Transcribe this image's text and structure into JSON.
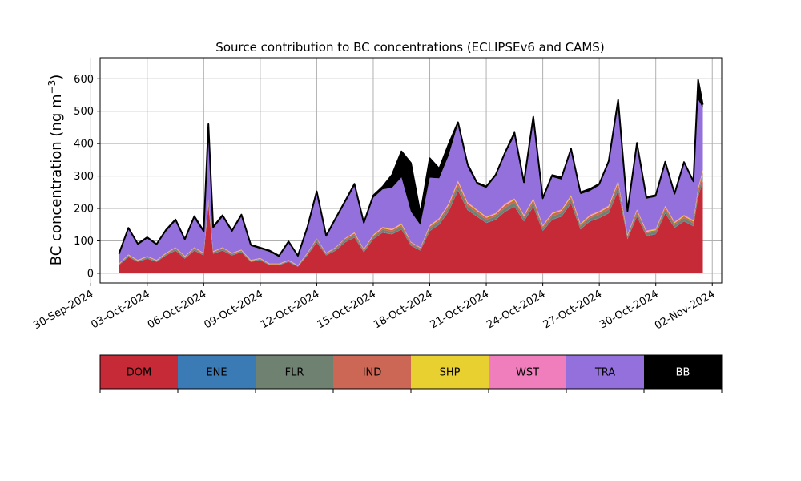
{
  "chart_data": {
    "type": "area",
    "stacked": true,
    "title": "Source contribution to BC concentrations (ECLIPSEv6 and CAMS)",
    "xlabel": "",
    "ylabel": "BC concentration (ng m",
    "ylabel_sup": "−3",
    "ylabel_end": ")",
    "xlim": [
      "2024-09-30T12:00",
      "2024-11-02T12:00"
    ],
    "ylim": [
      -30,
      665
    ],
    "grid": true,
    "yticks": [
      0,
      100,
      200,
      300,
      400,
      500,
      600
    ],
    "xticks": [
      {
        "date": "2024-09-30",
        "label": "30-Sep-2024"
      },
      {
        "date": "2024-10-03",
        "label": "03-Oct-2024"
      },
      {
        "date": "2024-10-06",
        "label": "06-Oct-2024"
      },
      {
        "date": "2024-10-09",
        "label": "09-Oct-2024"
      },
      {
        "date": "2024-10-12",
        "label": "12-Oct-2024"
      },
      {
        "date": "2024-10-15",
        "label": "15-Oct-2024"
      },
      {
        "date": "2024-10-18",
        "label": "18-Oct-2024"
      },
      {
        "date": "2024-10-21",
        "label": "21-Oct-2024"
      },
      {
        "date": "2024-10-24",
        "label": "24-Oct-2024"
      },
      {
        "date": "2024-10-27",
        "label": "27-Oct-2024"
      },
      {
        "date": "2024-10-30",
        "label": "30-Oct-2024"
      },
      {
        "date": "2024-11-02",
        "label": "02-Nov-2024"
      }
    ],
    "total_line_color": "#000000",
    "x": [
      "2024-10-01T12:00",
      "2024-10-02T00:00",
      "2024-10-02T12:00",
      "2024-10-03T00:00",
      "2024-10-03T12:00",
      "2024-10-04T00:00",
      "2024-10-04T12:00",
      "2024-10-05T00:00",
      "2024-10-05T12:00",
      "2024-10-06T00:00",
      "2024-10-06T06:00",
      "2024-10-06T12:00",
      "2024-10-07T00:00",
      "2024-10-07T12:00",
      "2024-10-08T00:00",
      "2024-10-08T12:00",
      "2024-10-09T00:00",
      "2024-10-09T12:00",
      "2024-10-10T00:00",
      "2024-10-10T12:00",
      "2024-10-11T00:00",
      "2024-10-11T12:00",
      "2024-10-12T00:00",
      "2024-10-12T12:00",
      "2024-10-13T00:00",
      "2024-10-13T12:00",
      "2024-10-14T00:00",
      "2024-10-14T12:00",
      "2024-10-15T00:00",
      "2024-10-15T12:00",
      "2024-10-16T00:00",
      "2024-10-16T12:00",
      "2024-10-17T00:00",
      "2024-10-17T12:00",
      "2024-10-18T00:00",
      "2024-10-18T12:00",
      "2024-10-19T00:00",
      "2024-10-19T12:00",
      "2024-10-20T00:00",
      "2024-10-20T12:00",
      "2024-10-21T00:00",
      "2024-10-21T12:00",
      "2024-10-22T00:00",
      "2024-10-22T12:00",
      "2024-10-23T00:00",
      "2024-10-23T12:00",
      "2024-10-24T00:00",
      "2024-10-24T12:00",
      "2024-10-25T00:00",
      "2024-10-25T12:00",
      "2024-10-26T00:00",
      "2024-10-26T12:00",
      "2024-10-27T00:00",
      "2024-10-27T12:00",
      "2024-10-28T00:00",
      "2024-10-28T12:00",
      "2024-10-29T00:00",
      "2024-10-29T12:00",
      "2024-10-30T00:00",
      "2024-10-30T12:00",
      "2024-10-31T00:00",
      "2024-10-31T12:00",
      "2024-11-01T00:00",
      "2024-11-01T06:00",
      "2024-11-01T12:00"
    ],
    "series": [
      {
        "name": "DOM",
        "color": "#c62a36",
        "values": [
          25,
          50,
          35,
          45,
          35,
          55,
          70,
          45,
          70,
          55,
          210,
          60,
          70,
          55,
          65,
          35,
          40,
          25,
          25,
          35,
          20,
          55,
          95,
          55,
          70,
          95,
          110,
          65,
          105,
          125,
          120,
          135,
          85,
          70,
          130,
          150,
          190,
          255,
          195,
          175,
          155,
          165,
          190,
          205,
          160,
          205,
          130,
          165,
          175,
          215,
          135,
          160,
          170,
          185,
          255,
          105,
          175,
          115,
          120,
          185,
          140,
          160,
          145,
          235,
          285
        ]
      },
      {
        "name": "ENE",
        "color": "#3a7ab5",
        "values": [
          1,
          1,
          1,
          1,
          1,
          1,
          1,
          1,
          1,
          1,
          1,
          1,
          1,
          1,
          1,
          1,
          1,
          1,
          1,
          1,
          1,
          1,
          1,
          1,
          1,
          1,
          1,
          1,
          1,
          1,
          1,
          1,
          1,
          1,
          1,
          1,
          1,
          1,
          1,
          1,
          1,
          1,
          1,
          1,
          1,
          1,
          1,
          1,
          1,
          1,
          1,
          1,
          1,
          1,
          1,
          1,
          1,
          1,
          1,
          1,
          1,
          1,
          1,
          1,
          1
        ]
      },
      {
        "name": "FLR",
        "color": "#6f8271",
        "values": [
          1,
          3,
          2,
          3,
          2,
          3,
          4,
          3,
          4,
          3,
          8,
          3,
          4,
          3,
          3,
          2,
          2,
          1,
          1,
          2,
          1,
          3,
          6,
          3,
          4,
          6,
          7,
          4,
          6,
          8,
          7,
          8,
          5,
          4,
          8,
          9,
          11,
          14,
          11,
          10,
          9,
          9,
          11,
          12,
          9,
          12,
          8,
          10,
          10,
          12,
          8,
          9,
          10,
          11,
          14,
          6,
          10,
          7,
          7,
          11,
          8,
          9,
          8,
          13,
          15
        ]
      },
      {
        "name": "IND",
        "color": "#cc6655",
        "values": [
          1,
          2,
          1,
          2,
          1,
          2,
          3,
          2,
          3,
          2,
          6,
          2,
          3,
          2,
          2,
          1,
          2,
          1,
          1,
          1,
          1,
          2,
          4,
          2,
          3,
          4,
          5,
          3,
          4,
          5,
          5,
          6,
          4,
          3,
          5,
          6,
          8,
          10,
          8,
          7,
          6,
          7,
          8,
          8,
          6,
          8,
          5,
          7,
          7,
          8,
          5,
          6,
          7,
          7,
          10,
          4,
          7,
          5,
          5,
          7,
          6,
          6,
          6,
          9,
          11
        ]
      },
      {
        "name": "SHP",
        "color": "#e8d030",
        "values": [
          1,
          1,
          1,
          1,
          1,
          1,
          1,
          1,
          1,
          1,
          2,
          1,
          1,
          1,
          1,
          1,
          1,
          1,
          1,
          1,
          1,
          1,
          1,
          1,
          1,
          1,
          2,
          1,
          2,
          2,
          2,
          2,
          1,
          1,
          2,
          2,
          3,
          3,
          3,
          2,
          2,
          2,
          3,
          3,
          2,
          3,
          2,
          2,
          2,
          3,
          2,
          2,
          2,
          3,
          3,
          2,
          2,
          2,
          2,
          2,
          2,
          2,
          2,
          3,
          4
        ]
      },
      {
        "name": "WST",
        "color": "#f07ebd",
        "values": [
          1,
          1,
          1,
          1,
          1,
          1,
          1,
          1,
          1,
          1,
          2,
          1,
          1,
          1,
          1,
          1,
          1,
          1,
          1,
          1,
          1,
          1,
          1,
          1,
          1,
          1,
          1,
          1,
          1,
          2,
          2,
          2,
          1,
          1,
          2,
          2,
          2,
          3,
          2,
          2,
          2,
          2,
          2,
          2,
          2,
          2,
          2,
          2,
          2,
          2,
          2,
          2,
          2,
          2,
          3,
          1,
          2,
          2,
          2,
          2,
          2,
          2,
          2,
          3,
          3
        ]
      },
      {
        "name": "TRA",
        "color": "#9370db",
        "values": [
          27,
          77,
          46,
          54,
          45,
          66,
          81,
          48,
          89,
          62,
          221,
          70,
          93,
          63,
          102,
          43,
          28,
          36,
          20,
          52,
          26,
          74,
          140,
          49,
          84,
          108,
          143,
          76,
          114,
          116,
          127,
          142,
          93,
          69,
          147,
          123,
          148,
          175,
          109,
          78,
          88,
          113,
          153,
          193,
          96,
          244,
          79,
          110,
          92,
          136,
          91,
          74,
          79,
          130,
          239,
          68,
          199,
          98,
          99,
          129,
          82,
          158,
          115,
          272,
          191
        ]
      },
      {
        "name": "BB",
        "color": "#000000",
        "values": [
          3,
          5,
          4,
          4,
          4,
          5,
          5,
          4,
          7,
          5,
          10,
          5,
          6,
          5,
          6,
          4,
          4,
          4,
          4,
          5,
          3,
          5,
          5,
          4,
          5,
          6,
          7,
          5,
          7,
          8,
          40,
          80,
          150,
          35,
          60,
          30,
          35,
          5,
          10,
          5,
          5,
          5,
          5,
          10,
          5,
          8,
          5,
          6,
          7,
          7,
          6,
          6,
          5,
          7,
          10,
          5,
          6,
          5,
          5,
          7,
          5,
          5,
          5,
          61,
          10
        ]
      }
    ]
  },
  "legend": {
    "items": [
      {
        "label": "DOM",
        "color": "#c62a36",
        "text_color": "#000000"
      },
      {
        "label": "ENE",
        "color": "#3a7ab5",
        "text_color": "#000000"
      },
      {
        "label": "FLR",
        "color": "#6f8271",
        "text_color": "#000000"
      },
      {
        "label": "IND",
        "color": "#cc6655",
        "text_color": "#000000"
      },
      {
        "label": "SHP",
        "color": "#e8d030",
        "text_color": "#000000"
      },
      {
        "label": "WST",
        "color": "#f07ebd",
        "text_color": "#000000"
      },
      {
        "label": "TRA",
        "color": "#9370db",
        "text_color": "#000000"
      },
      {
        "label": "BB",
        "color": "#000000",
        "text_color": "#ffffff"
      }
    ]
  }
}
